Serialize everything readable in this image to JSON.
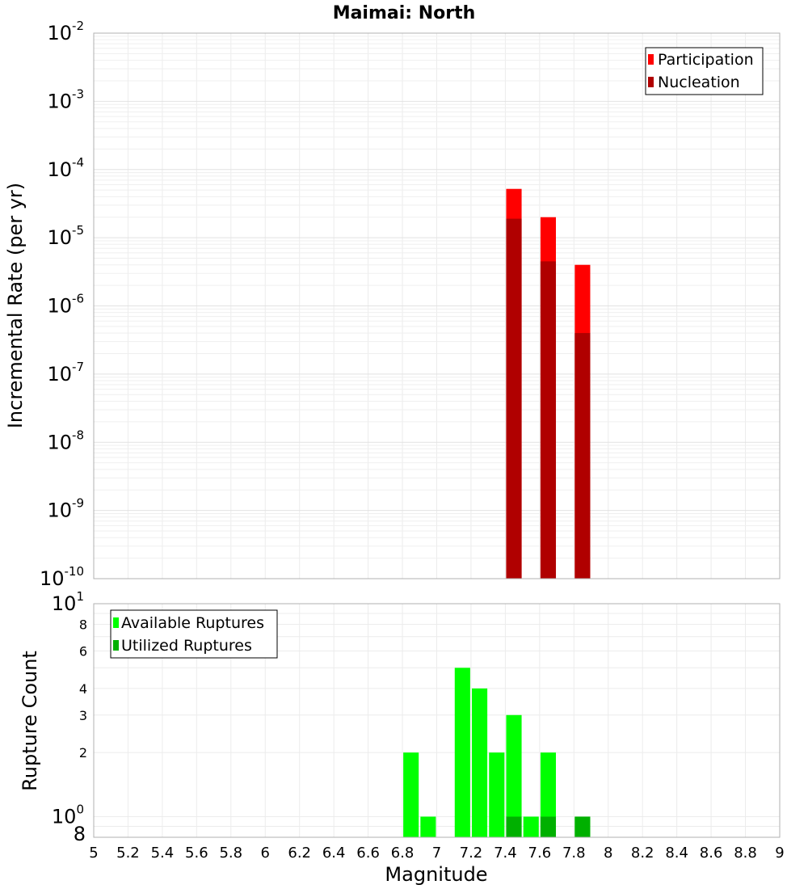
{
  "chart_data": [
    {
      "type": "bar",
      "title": "Maimai: North",
      "xlabel": "",
      "ylabel": "Incremental Rate (per yr)",
      "yscale": "log",
      "ylim": [
        1e-10,
        0.01
      ],
      "xlim": [
        5,
        9
      ],
      "ytick_labels": [
        {
          "base": "10",
          "exp": "-2",
          "value": 0.01
        },
        {
          "base": "10",
          "exp": "-3",
          "value": 0.001
        },
        {
          "base": "10",
          "exp": "-4",
          "value": 0.0001
        },
        {
          "base": "10",
          "exp": "-5",
          "value": 1e-05
        },
        {
          "base": "10",
          "exp": "-6",
          "value": 1e-06
        },
        {
          "base": "10",
          "exp": "-7",
          "value": 1e-07
        },
        {
          "base": "10",
          "exp": "-8",
          "value": 1e-08
        },
        {
          "base": "10",
          "exp": "-9",
          "value": 1e-09
        },
        {
          "base": "10",
          "exp": "-10",
          "value": 1e-10
        }
      ],
      "bar_width": 0.09,
      "series": [
        {
          "name": "Participation",
          "color": "#ff0000",
          "x": [
            7.45,
            7.65,
            7.85
          ],
          "values": [
            5.2e-05,
            2e-05,
            4e-06
          ]
        },
        {
          "name": "Nucleation",
          "color": "#b00000",
          "x": [
            7.45,
            7.65,
            7.85
          ],
          "values": [
            1.9e-05,
            4.5e-06,
            4e-07
          ]
        }
      ],
      "legend": {
        "position": "top-right",
        "entries": [
          "Participation",
          "Nucleation"
        ]
      }
    },
    {
      "type": "bar",
      "xlabel": "Magnitude",
      "ylabel": "Rupture Count",
      "yscale": "log",
      "ylim": [
        0.8,
        10
      ],
      "xlim": [
        5,
        9
      ],
      "x_ticks": [
        "5",
        "5.2",
        "5.4",
        "5.6",
        "5.8",
        "6",
        "6.2",
        "6.4",
        "6.6",
        "6.8",
        "7",
        "7.2",
        "7.4",
        "7.6",
        "7.8",
        "8",
        "8.2",
        "8.4",
        "8.6",
        "8.8",
        "9"
      ],
      "ytick_major": [
        {
          "base": "10",
          "exp": "1",
          "value": 10
        },
        {
          "base": "10",
          "exp": "0",
          "value": 1
        }
      ],
      "ytick_minor": [
        {
          "label": "8",
          "value": 8
        },
        {
          "label": "6",
          "value": 6
        },
        {
          "label": "4",
          "value": 4
        },
        {
          "label": "3",
          "value": 3
        },
        {
          "label": "2",
          "value": 2
        }
      ],
      "ytick_bottom": {
        "label": "8",
        "value": 0.8
      },
      "bar_width": 0.09,
      "series": [
        {
          "name": "Available Ruptures",
          "color": "#00ff00",
          "x": [
            6.85,
            6.95,
            7.15,
            7.25,
            7.35,
            7.45,
            7.55,
            7.65,
            7.85
          ],
          "values": [
            2,
            1,
            5,
            4,
            2,
            3,
            1,
            2,
            1
          ]
        },
        {
          "name": "Utilized Ruptures",
          "color": "#00b000",
          "x": [
            7.45,
            7.65,
            7.85
          ],
          "values": [
            1,
            1,
            1
          ]
        }
      ],
      "legend": {
        "position": "top-left",
        "entries": [
          "Available Ruptures",
          "Utilized Ruptures"
        ]
      }
    }
  ]
}
